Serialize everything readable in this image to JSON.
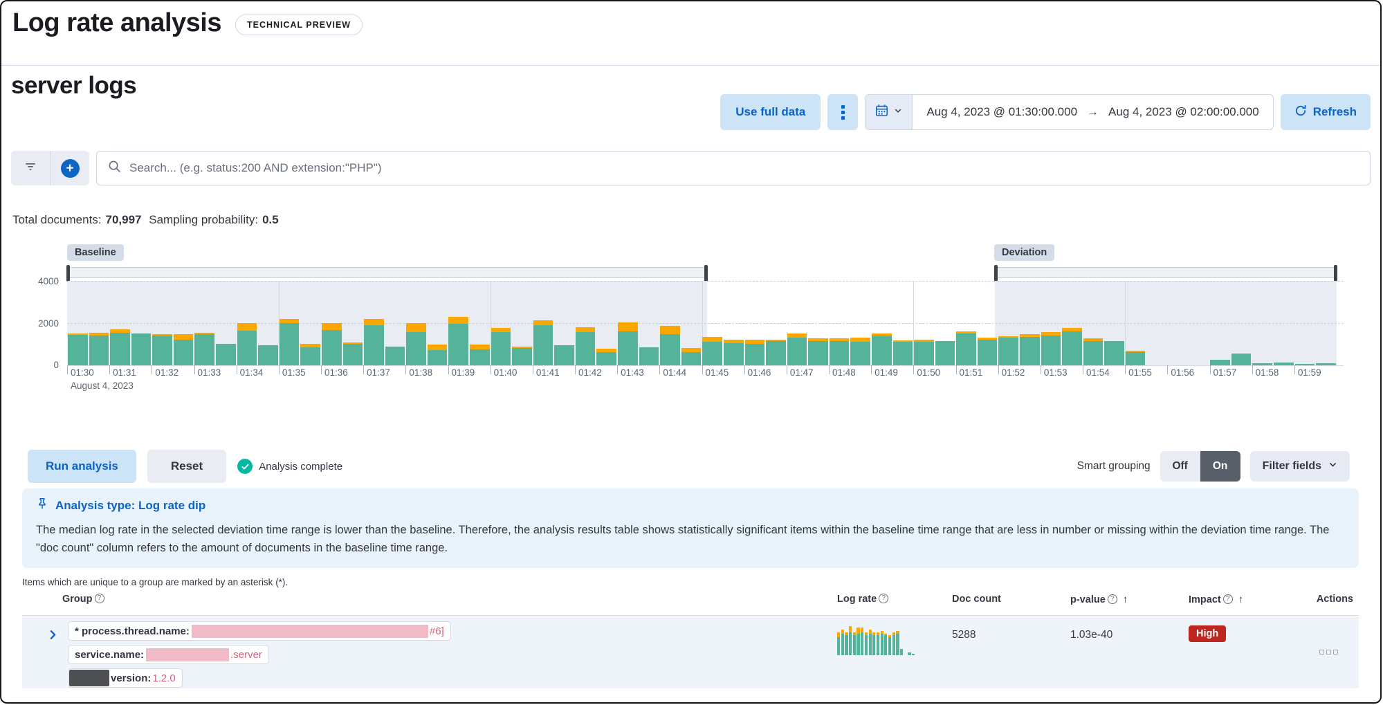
{
  "header": {
    "title": "Log rate analysis",
    "tech_preview_badge": "TECHNICAL PREVIEW"
  },
  "toolbar": {
    "data_view_title": "server logs",
    "use_full_data_label": "Use full data",
    "date_from": "Aug 4, 2023 @ 01:30:00.000",
    "date_to": "Aug 4, 2023 @ 02:00:00.000",
    "refresh_label": "Refresh"
  },
  "icons": {
    "arrow_right": "→",
    "sort_asc": "↑",
    "plus": "+",
    "question": "?"
  },
  "search": {
    "placeholder": "Search... (e.g. status:200 AND extension:\"PHP\")"
  },
  "summary": {
    "total_documents_label": "Total documents:",
    "total_documents_value": "70,997",
    "sampling_probability_label": "Sampling probability:",
    "sampling_probability_value": "0.5"
  },
  "chart_data": {
    "type": "bar",
    "title": "Document count histogram (30s buckets)",
    "x_date_label": "August 4, 2023",
    "x_ticks": [
      "01:30",
      "01:31",
      "01:32",
      "01:33",
      "01:34",
      "01:35",
      "01:36",
      "01:37",
      "01:38",
      "01:39",
      "01:40",
      "01:41",
      "01:42",
      "01:43",
      "01:44",
      "01:45",
      "01:46",
      "01:47",
      "01:48",
      "01:49",
      "01:50",
      "01:51",
      "01:52",
      "01:53",
      "01:54",
      "01:55",
      "01:56",
      "01:57",
      "01:58",
      "01:59"
    ],
    "y_ticks": [
      "0",
      "2000",
      "4000"
    ],
    "ylim": [
      0,
      4400
    ],
    "bucket_seconds": 30,
    "grid": true,
    "baseline": {
      "label": "Baseline",
      "start_frac": 0,
      "end_frac": 0.504
    },
    "deviation": {
      "label": "Deviation",
      "start_frac": 0.731,
      "end_frac": 1.0
    },
    "series": [
      {
        "name": "doc count",
        "color": "#54b399",
        "values": [
          1450,
          1400,
          1530,
          1520,
          1400,
          1210,
          1460,
          1030,
          1630,
          960,
          2010,
          860,
          1660,
          1020,
          1910,
          890,
          1560,
          710,
          1960,
          760,
          1560,
          810,
          1910,
          960,
          1560,
          620,
          1610,
          860,
          1460,
          610,
          1120,
          1060,
          1010,
          1160,
          1310,
          1160,
          1160,
          1110,
          1410,
          1110,
          1110,
          1160,
          1510,
          1210,
          1310,
          1360,
          1410,
          1620,
          1160,
          1160,
          620,
          0,
          0,
          0,
          260,
          560,
          110,
          140,
          60,
          110
        ]
      },
      {
        "name": "other doc count",
        "color": "#fba700",
        "values": [
          60,
          150,
          170,
          0,
          60,
          260,
          80,
          0,
          380,
          0,
          200,
          160,
          330,
          60,
          300,
          0,
          450,
          260,
          350,
          210,
          200,
          90,
          210,
          0,
          260,
          160,
          410,
          0,
          400,
          210,
          210,
          160,
          200,
          60,
          210,
          110,
          110,
          210,
          110,
          60,
          110,
          0,
          110,
          110,
          60,
          110,
          160,
          160,
          110,
          0,
          60,
          0,
          0,
          0,
          0,
          0,
          0,
          0,
          0,
          0
        ]
      }
    ]
  },
  "controls": {
    "run_label": "Run analysis",
    "reset_label": "Reset",
    "status_text": "Analysis complete",
    "smart_grouping_label": "Smart grouping",
    "toggle_off": "Off",
    "toggle_on": "On",
    "filter_fields_label": "Filter fields"
  },
  "callout": {
    "title": "Analysis type: Log rate dip",
    "body": "The median log rate in the selected deviation time range is lower than the baseline. Therefore, the analysis results table shows statistically significant items within the baseline time range that are less in number or missing within the deviation time range. The \"doc count\" column refers to the amount of documents in the baseline time range."
  },
  "results_table": {
    "note": "Items which are unique to a group are marked by an asterisk (*).",
    "columns": {
      "group": "Group",
      "log_rate": "Log rate",
      "doc_count": "Doc count",
      "p_value": "p-value",
      "impact": "Impact",
      "actions": "Actions"
    },
    "rows": [
      {
        "badges": [
          {
            "text": "* process.thread.name:",
            "value_redacted": true,
            "tail": "#6]"
          },
          {
            "text": "service.name:",
            "value_redacted": true,
            "tail": ".server"
          },
          {
            "field_redacted": true,
            "text": "version:",
            "tail": "1.2.0"
          }
        ],
        "doc_count": "5288",
        "p_value": "1.03e-40",
        "impact": "High",
        "sparkline": {
          "green": [
            12,
            14,
            13,
            15,
            13,
            14,
            15,
            13,
            14,
            13,
            13,
            14,
            13,
            12,
            13,
            14,
            4,
            0,
            2,
            1
          ],
          "orange": [
            3,
            3,
            2,
            4,
            2,
            4,
            3,
            2,
            3,
            2,
            2,
            2,
            1,
            1,
            2,
            2,
            0,
            0,
            0,
            0
          ]
        }
      }
    ]
  },
  "colors": {
    "primary_blue": "#0b63c5",
    "bar_green": "#54b399",
    "bar_orange": "#fba700",
    "danger_red": "#bd271e",
    "success_teal": "#00b9a2",
    "redaction_pink": "#f1bac7",
    "redaction_dark": "#4f5054",
    "pink_text": "#d4617c"
  }
}
